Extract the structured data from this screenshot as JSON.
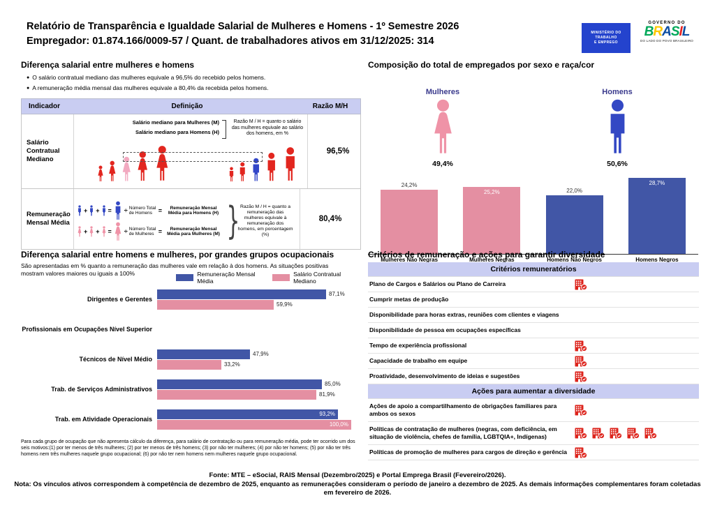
{
  "header": {
    "title_line1": "Relatório de Transparência e Igualdade Salarial de Mulheres e Homens - 1º Semestre 2026",
    "title_line2": "Empregador: 01.874.166/0009-57 / Quant. de trabalhadores ativos em 31/12/2025: 314",
    "mte_logo_lines": [
      "MINISTÉRIO DO",
      "TRABALHO",
      "E EMPREGO"
    ],
    "gov_logo": {
      "top": "GOVERNO DO",
      "name": "BRASIL",
      "bottom": "DO LADO DO POVO BRASILEIRO"
    }
  },
  "salary_diff": {
    "heading": "Diferença salarial entre mulheres e homens",
    "bullets": [
      "O salário contratual mediano das mulheres equivale a 96,5% do recebido pelos homens.",
      "A remuneração média mensal das mulheres equivale a 80,4% da recebida pelos homens."
    ],
    "table_headers": {
      "indicator": "Indicador",
      "definition": "Definição",
      "ratio": "Razão M/H"
    },
    "row1": {
      "indicator": "Salário Contratual Mediano",
      "label_women": "Salário mediano para Mulheres (M)",
      "label_men": "Salário mediano para Homens (H)",
      "note": "Razão M / H = quanto o salário das mulheres equivale ao salário dos homens, em %",
      "ratio": "96,5%"
    },
    "row2": {
      "indicator": "Remuneração Mensal Média",
      "men": {
        "divisor": "Número Total de Homens",
        "result": "Remuneração Mensal Média para Homens (H)"
      },
      "women": {
        "divisor": "Número Total de Mulheres",
        "result": "Remuneração Mensal Média para Mulheres (M)"
      },
      "note": "Razão M / H = quanto a remuneração das mulheres equivale à remuneração dos homens, em porcentagem (%)",
      "ratio": "80,4%"
    }
  },
  "composition": {
    "heading": "Composição do total de empregados por sexo e raça/cor",
    "groups": [
      {
        "label": "Mulheres",
        "pct": "49,4%",
        "sex": "female"
      },
      {
        "label": "Homens",
        "pct": "50,6%",
        "sex": "male"
      }
    ]
  },
  "occupational": {
    "heading": "Diferença salarial entre homens e mulheres, por grandes grupos ocupacionais",
    "subtext": "São apresentadas em % quanto a remuneração das mulheres vale em relação à dos homens. As situações positivas mostram valores maiores ou iguais a 100%",
    "footnote": "Para cada grupo de ocupação que não apresenta cálculo da diferença, para salário de contratação ou para remuneração média, pode ter ocorrido um dos seis motivos:(1) por ter menos de três mulheres; (2) por ter menos de três homens; (3) por não ter mulheres; (4) por não ter homens; (5) por não ter três homens nem três mulheres naquele grupo ocupacional; (6) por não ter nem homens nem mulheres naquele grupo ocupacional."
  },
  "criteria": {
    "heading": "Critérios de remuneração e ações para garantir diversidade",
    "sections": [
      {
        "title": "Critérios remuneratórios",
        "rows": [
          {
            "label": "Plano de Cargos e Salários ou Plano de Carreira",
            "icons": 1
          },
          {
            "label": "Cumprir metas de produção",
            "icons": 0
          },
          {
            "label": "Disponibilidade para horas extras, reuniões com clientes e viagens",
            "icons": 0
          },
          {
            "label": "Disponibilidade de pessoa em ocupações específicas",
            "icons": 0
          },
          {
            "label": "Tempo de experiência profissional",
            "icons": 1
          },
          {
            "label": "Capacidade de trabalho em equipe",
            "icons": 1
          },
          {
            "label": "Proatividade, desenvolvimento de ideias e sugestões",
            "icons": 1
          }
        ]
      },
      {
        "title": "Ações para aumentar a diversidade",
        "rows": [
          {
            "label": "Ações de apoio a compartilhamento de obrigações familiares para ambos os sexos",
            "icons": 1
          },
          {
            "label": "Políticas de contratação de mulheres (negras, com deficiência, em situação de violência, chefes de família, LGBTQIA+, Indígenas)",
            "icons": 5
          },
          {
            "label": "Políticas de promoção de mulheres para cargos de direção e gerência",
            "icons": 1
          }
        ]
      }
    ]
  },
  "footer": {
    "fonte": "Fonte: MTE – eSocial, RAIS Mensal (Dezembro/2025) e Portal Emprega Brasil (Fevereiro/2026).",
    "nota": "Nota: Os vínculos ativos correspondem à competência de dezembro de 2025, enquanto as remunerações consideram o período de janeiro a dezembro de 2025. As demais informações complementares foram coletadas em fevereiro de 2026."
  },
  "chart_data": [
    {
      "type": "bar",
      "title": "Composição do total de empregados por sexo e raça/cor",
      "categories": [
        "Mulheres Não Negras",
        "Mulheres Negras",
        "Homens Não Negros",
        "Homens Negros"
      ],
      "values": [
        24.2,
        25.2,
        22.0,
        28.7
      ],
      "value_labels": [
        "24,2%",
        "25,2%",
        "22,0%",
        "28,7%"
      ],
      "label_inside": [
        false,
        true,
        false,
        true
      ],
      "group_totals": {
        "Mulheres": 49.4,
        "Homens": 50.6
      },
      "ylim": [
        0,
        30
      ],
      "grid": false,
      "legend_position": "none"
    },
    {
      "type": "bar",
      "orientation": "horizontal",
      "title": "Diferença salarial entre homens e mulheres, por grandes grupos ocupacionais",
      "categories": [
        "Dirigentes e Gerentes",
        "Profissionais em Ocupações Nível Superior",
        "Técnicos de Nível Médio",
        "Trab. de Serviços Administrativos",
        "Trab. em Atividade Operacionais"
      ],
      "series": [
        {
          "name": "Remuneração Mensal Média",
          "values": [
            87.1,
            null,
            47.9,
            85.0,
            93.2
          ],
          "labels": [
            "87,1%",
            "",
            "47,9%",
            "85,0%",
            "93,2%"
          ],
          "label_inside": [
            false,
            false,
            false,
            false,
            true
          ]
        },
        {
          "name": "Salário Contratual Mediano",
          "values": [
            59.9,
            null,
            33.2,
            81.9,
            100.0
          ],
          "labels": [
            "59,9%",
            "",
            "33,2%",
            "81,9%",
            "100,0%"
          ],
          "label_inside": [
            false,
            false,
            false,
            false,
            true
          ]
        }
      ],
      "xlim": [
        0,
        100
      ],
      "grid": false,
      "legend_position": "top-right"
    }
  ],
  "colors": {
    "bar_blue": "#4156a6",
    "bar_pink": "#e48fa2",
    "icon_red": "#e2261f",
    "icon_pink": "#f2a9c0",
    "icon_blue": "#3246c8",
    "female_icon_pink": "#ef93a7",
    "male_icon_blue": "#3348c4",
    "lavender": "#c9cdf2",
    "navy_label": "#39398c",
    "building_red": "#dd241c",
    "mte_blue": "#2443cd"
  }
}
